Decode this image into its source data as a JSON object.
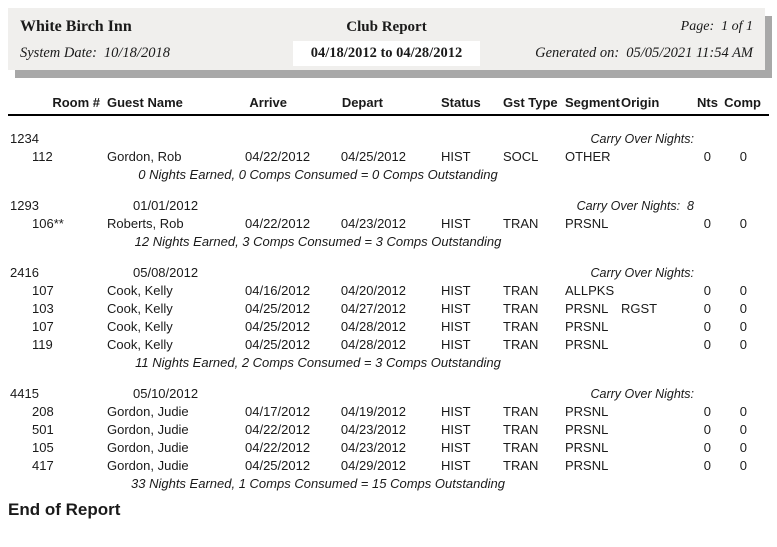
{
  "report_header": {
    "hotel_name": "White Birch Inn",
    "title": "Club Report",
    "page_label": "Page:",
    "page_value": "1 of 1",
    "system_date_label": "System Date:",
    "system_date": "10/18/2018",
    "date_range": "04/18/2012 to 04/28/2012",
    "generated_label": "Generated on:",
    "generated_value": "05/05/2021 11:54 AM"
  },
  "table": {
    "columns": [
      "Room #",
      "Guest Name",
      "Arrive",
      "Depart",
      "Status",
      "Gst Type",
      "Segment",
      "Origin",
      "Nts",
      "Comp"
    ],
    "carry_over_label": "Carry Over Nights:",
    "groups": [
      {
        "code": "1234",
        "date": "",
        "carry_over": "",
        "rows": [
          {
            "room": "112",
            "guest": "Gordon, Rob",
            "arrive": "04/22/2012",
            "depart": "04/25/2012",
            "status": "HIST",
            "gst_type": "SOCL",
            "segment": "OTHER",
            "origin": "",
            "nts": "0",
            "comp": "0"
          }
        ],
        "summary": "0 Nights Earned, 0 Comps Consumed = 0 Comps Outstanding"
      },
      {
        "code": "1293",
        "date": "01/01/2012",
        "carry_over": "8",
        "rows": [
          {
            "room": "106**",
            "guest": "Roberts, Rob",
            "arrive": "04/22/2012",
            "depart": "04/23/2012",
            "status": "HIST",
            "gst_type": "TRAN",
            "segment": "PRSNL",
            "origin": "",
            "nts": "0",
            "comp": "0"
          }
        ],
        "summary": "12 Nights Earned, 3 Comps Consumed = 3 Comps Outstanding"
      },
      {
        "code": "2416",
        "date": "05/08/2012",
        "carry_over": "",
        "rows": [
          {
            "room": "107",
            "guest": "Cook, Kelly",
            "arrive": "04/16/2012",
            "depart": "04/20/2012",
            "status": "HIST",
            "gst_type": "TRAN",
            "segment": "ALLPKS",
            "origin": "",
            "nts": "0",
            "comp": "0"
          },
          {
            "room": "103",
            "guest": "Cook, Kelly",
            "arrive": "04/25/2012",
            "depart": "04/27/2012",
            "status": "HIST",
            "gst_type": "TRAN",
            "segment": "PRSNL",
            "origin": "RGST",
            "nts": "0",
            "comp": "0"
          },
          {
            "room": "107",
            "guest": "Cook, Kelly",
            "arrive": "04/25/2012",
            "depart": "04/28/2012",
            "status": "HIST",
            "gst_type": "TRAN",
            "segment": "PRSNL",
            "origin": "",
            "nts": "0",
            "comp": "0"
          },
          {
            "room": "119",
            "guest": "Cook, Kelly",
            "arrive": "04/25/2012",
            "depart": "04/28/2012",
            "status": "HIST",
            "gst_type": "TRAN",
            "segment": "PRSNL",
            "origin": "",
            "nts": "0",
            "comp": "0"
          }
        ],
        "summary": "11 Nights Earned, 2 Comps Consumed = 3 Comps Outstanding"
      },
      {
        "code": "4415",
        "date": "05/10/2012",
        "carry_over": "",
        "rows": [
          {
            "room": "208",
            "guest": "Gordon, Judie",
            "arrive": "04/17/2012",
            "depart": "04/19/2012",
            "status": "HIST",
            "gst_type": "TRAN",
            "segment": "PRSNL",
            "origin": "",
            "nts": "0",
            "comp": "0"
          },
          {
            "room": "501",
            "guest": "Gordon, Judie",
            "arrive": "04/22/2012",
            "depart": "04/23/2012",
            "status": "HIST",
            "gst_type": "TRAN",
            "segment": "PRSNL",
            "origin": "",
            "nts": "0",
            "comp": "0"
          },
          {
            "room": "105",
            "guest": "Gordon, Judie",
            "arrive": "04/22/2012",
            "depart": "04/23/2012",
            "status": "HIST",
            "gst_type": "TRAN",
            "segment": "PRSNL",
            "origin": "",
            "nts": "0",
            "comp": "0"
          },
          {
            "room": "417",
            "guest": "Gordon, Judie",
            "arrive": "04/25/2012",
            "depart": "04/29/2012",
            "status": "HIST",
            "gst_type": "TRAN",
            "segment": "PRSNL",
            "origin": "",
            "nts": "0",
            "comp": "0"
          }
        ],
        "summary": "33 Nights Earned, 1 Comps Consumed = 15 Comps Outstanding"
      }
    ]
  },
  "footer": {
    "end_label": "End of Report"
  },
  "colors": {
    "header_bg": "#f0efed",
    "header_shadow": "#a8a8a8",
    "rule": "#000000"
  }
}
